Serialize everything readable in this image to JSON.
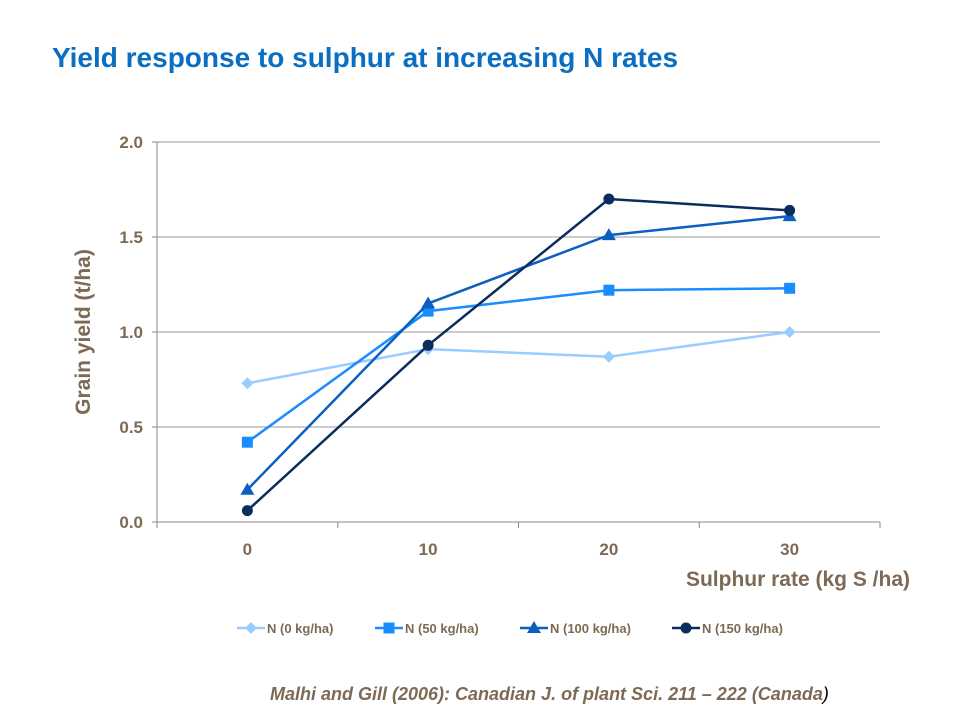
{
  "title": "Yield response to sulphur at increasing N rates",
  "citation": "Malhi and  Gill (2006): Canadian J. of plant Sci. 211 – 222 (Canada",
  "citation_end": ")",
  "chart_data": {
    "type": "line",
    "xlabel": "Sulphur rate (kg S /ha)",
    "ylabel": "Grain yield (t/ha)",
    "categories": [
      "0",
      "10",
      "20",
      "30"
    ],
    "ylim": [
      0,
      2.0
    ],
    "yticks": [
      "0.0",
      "0.5",
      "1.0",
      "1.5",
      "2.0"
    ],
    "grid": true,
    "legend": "bottom",
    "series": [
      {
        "name": "N (0 kg/ha)",
        "color": "#99ccff",
        "marker": "diamond",
        "values": [
          0.73,
          0.91,
          0.87,
          1.0
        ]
      },
      {
        "name": "N (50 kg/ha)",
        "color": "#1a8cff",
        "marker": "square",
        "values": [
          0.42,
          1.11,
          1.22,
          1.23
        ]
      },
      {
        "name": "N (100 kg/ha)",
        "color": "#0a5fc0",
        "marker": "triangle",
        "values": [
          0.17,
          1.15,
          1.51,
          1.61
        ]
      },
      {
        "name": "N (150 kg/ha)",
        "color": "#0b2d5e",
        "marker": "circle",
        "values": [
          0.06,
          0.93,
          1.7,
          1.64
        ]
      }
    ]
  }
}
